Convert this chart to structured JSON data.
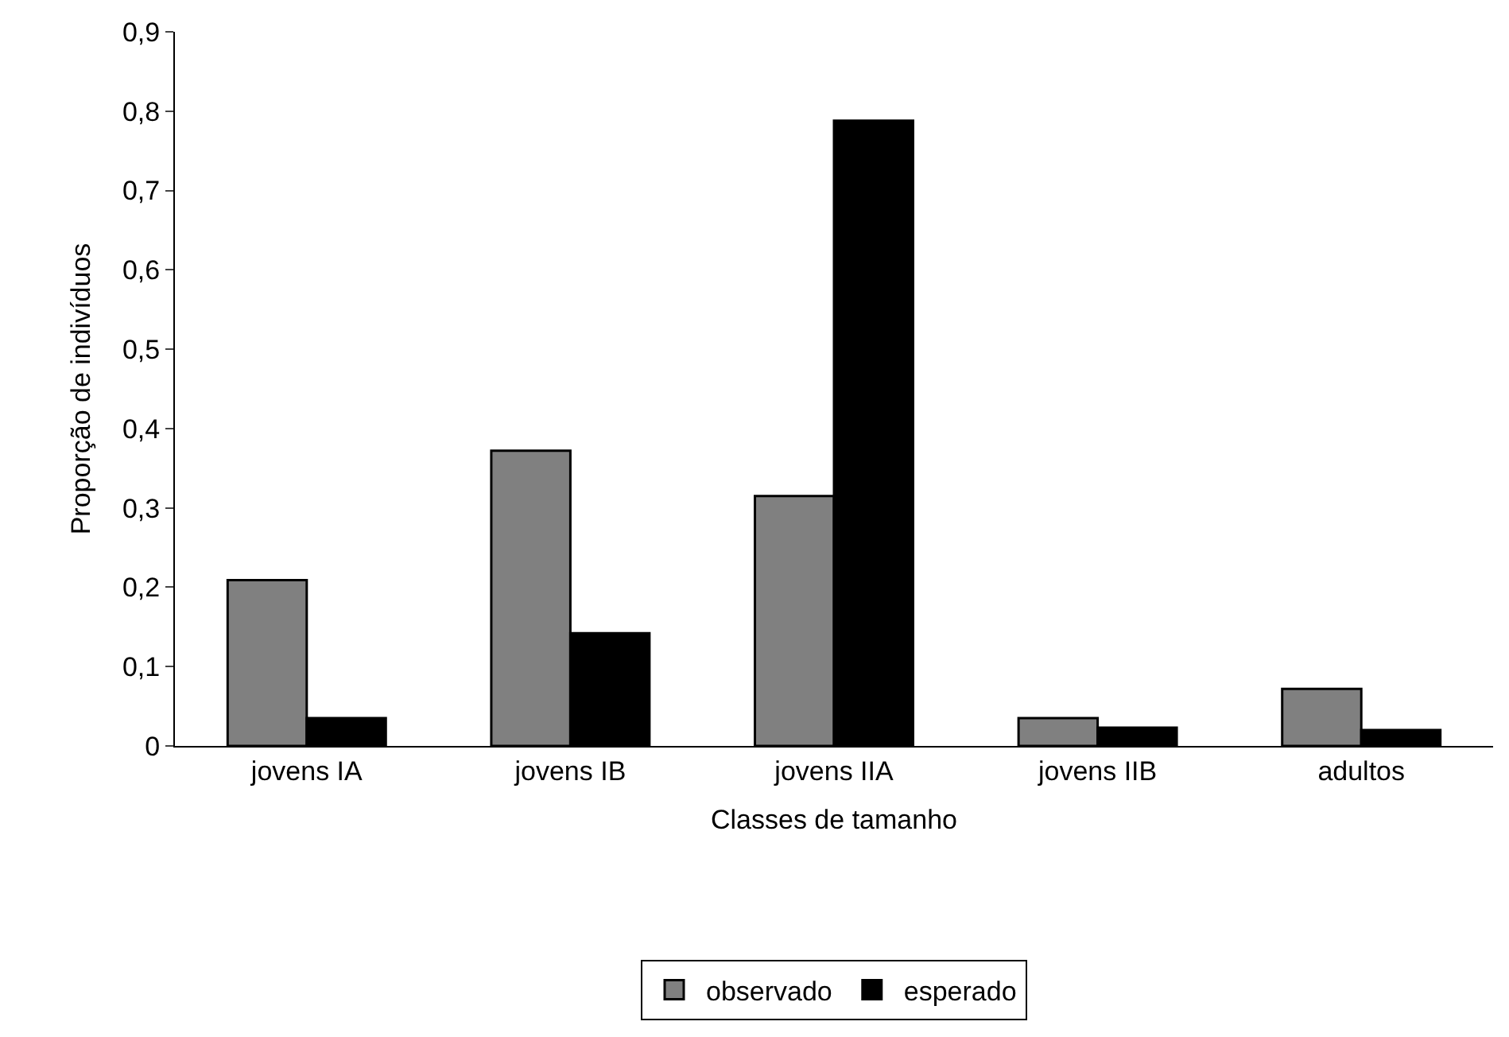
{
  "chart_data": {
    "type": "bar",
    "xlabel": "Classes de tamanho",
    "ylabel": "Proporção de indivíduos",
    "categories": [
      "jovens IA",
      "jovens IB",
      "jovens IIA",
      "jovens IIB",
      "adultos"
    ],
    "series": [
      {
        "name": "observado",
        "color": "#808080",
        "values": [
          0.209,
          0.372,
          0.315,
          0.035,
          0.072
        ]
      },
      {
        "name": "esperado",
        "color": "#000000",
        "values": [
          0.035,
          0.142,
          0.788,
          0.023,
          0.02
        ]
      }
    ],
    "ylim": [
      0,
      0.9
    ],
    "yticks": [
      {
        "value": 0,
        "label": "0"
      },
      {
        "value": 0.1,
        "label": "0,1"
      },
      {
        "value": 0.2,
        "label": "0,2"
      },
      {
        "value": 0.3,
        "label": "0,3"
      },
      {
        "value": 0.4,
        "label": "0,4"
      },
      {
        "value": 0.5,
        "label": "0,5"
      },
      {
        "value": 0.6,
        "label": "0,6"
      },
      {
        "value": 0.7,
        "label": "0,7"
      },
      {
        "value": 0.8,
        "label": "0,8"
      },
      {
        "value": 0.9,
        "label": "0,9"
      }
    ],
    "legend": "bottom"
  }
}
